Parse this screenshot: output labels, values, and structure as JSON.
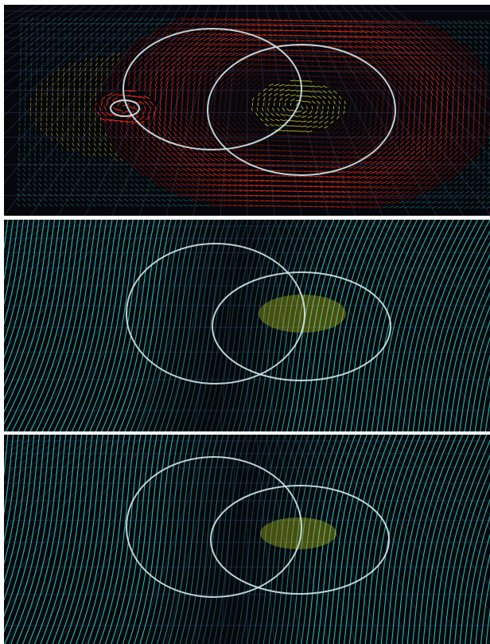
{
  "figure": {
    "panels": [
      {
        "id": "top",
        "shows": "vector-field-with-two-vortices",
        "field_color": "#2fd6c8",
        "highlight_colors": [
          "#ffe11f",
          "#ff2a12"
        ]
      },
      {
        "id": "middle",
        "shows": "smooth-vector-field",
        "field_color": "#2fd6c8",
        "highlight_colors": [
          "#c9d21a"
        ]
      },
      {
        "id": "bottom",
        "shows": "smooth-vector-field",
        "field_color": "#2fd6c8",
        "highlight_colors": [
          "#c9d21a"
        ]
      }
    ],
    "grid_color": "#1a2235",
    "ring_color": "#cfe8ea",
    "background_color": "#05070c"
  }
}
